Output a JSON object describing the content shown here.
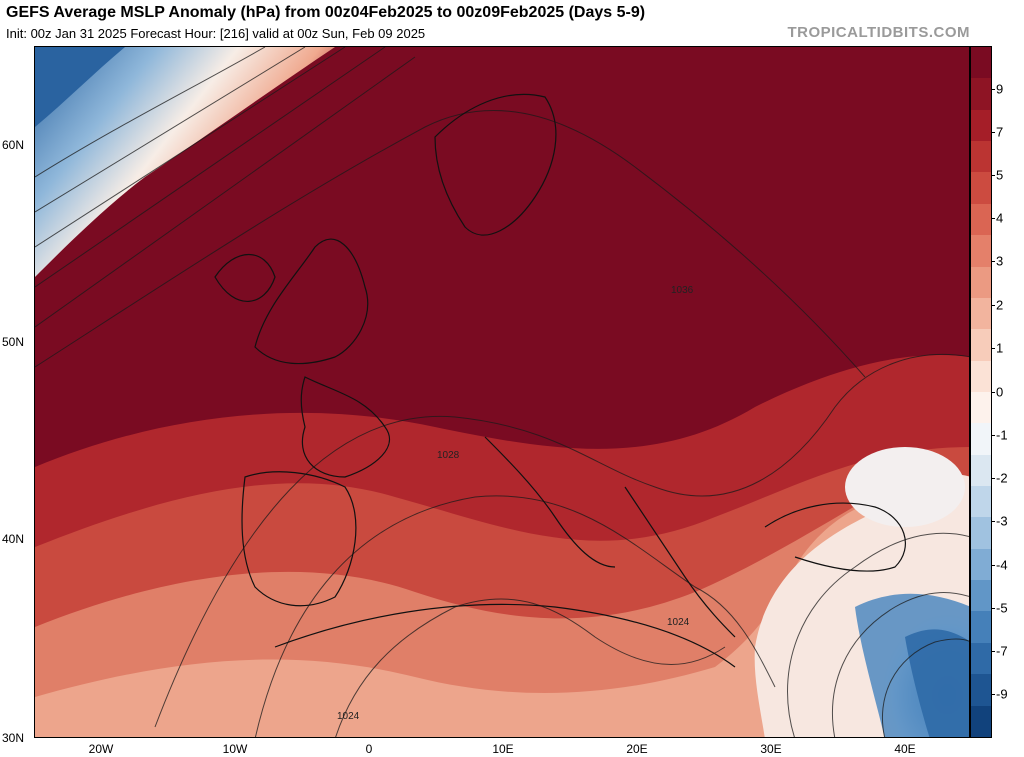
{
  "header": {
    "title": "GEFS Average MSLP Anomaly (hPa) from 00z04Feb2025 to 00z09Feb2025 (Days 5-9)",
    "subtitle": "Init: 00z Jan 31 2025   Forecast Hour: [216]   valid at 00z Sun, Feb 09 2025",
    "brand": "TROPICALTIDBITS.COM"
  },
  "map": {
    "lat_labels": [
      "60N",
      "50N",
      "40N",
      "30N"
    ],
    "lon_labels": [
      "20W",
      "10W",
      "0",
      "10E",
      "20E",
      "30E",
      "40E"
    ],
    "isobar_labels": [
      "1036",
      "1028",
      "1024",
      "1024"
    ]
  },
  "colorbar": {
    "labels": [
      "9",
      "7",
      "5",
      "4",
      "3",
      "2",
      "1",
      "0",
      "-1",
      "-2",
      "-3",
      "-4",
      "-5",
      "-7",
      "-9"
    ],
    "colors": [
      "#7a0b22",
      "#8e1424",
      "#a51e28",
      "#bb3432",
      "#cc4b40",
      "#da6553",
      "#e4806a",
      "#eb9a82",
      "#f2b49e",
      "#f7ccba",
      "#fbe2d6",
      "#fdf2ec",
      "#f1f5f9",
      "#dbe7f1",
      "#bfd6ea",
      "#a0c2e0",
      "#80acd4",
      "#6196c7",
      "#4580b9",
      "#2f6aa7",
      "#1e5592",
      "#11427c"
    ]
  }
}
